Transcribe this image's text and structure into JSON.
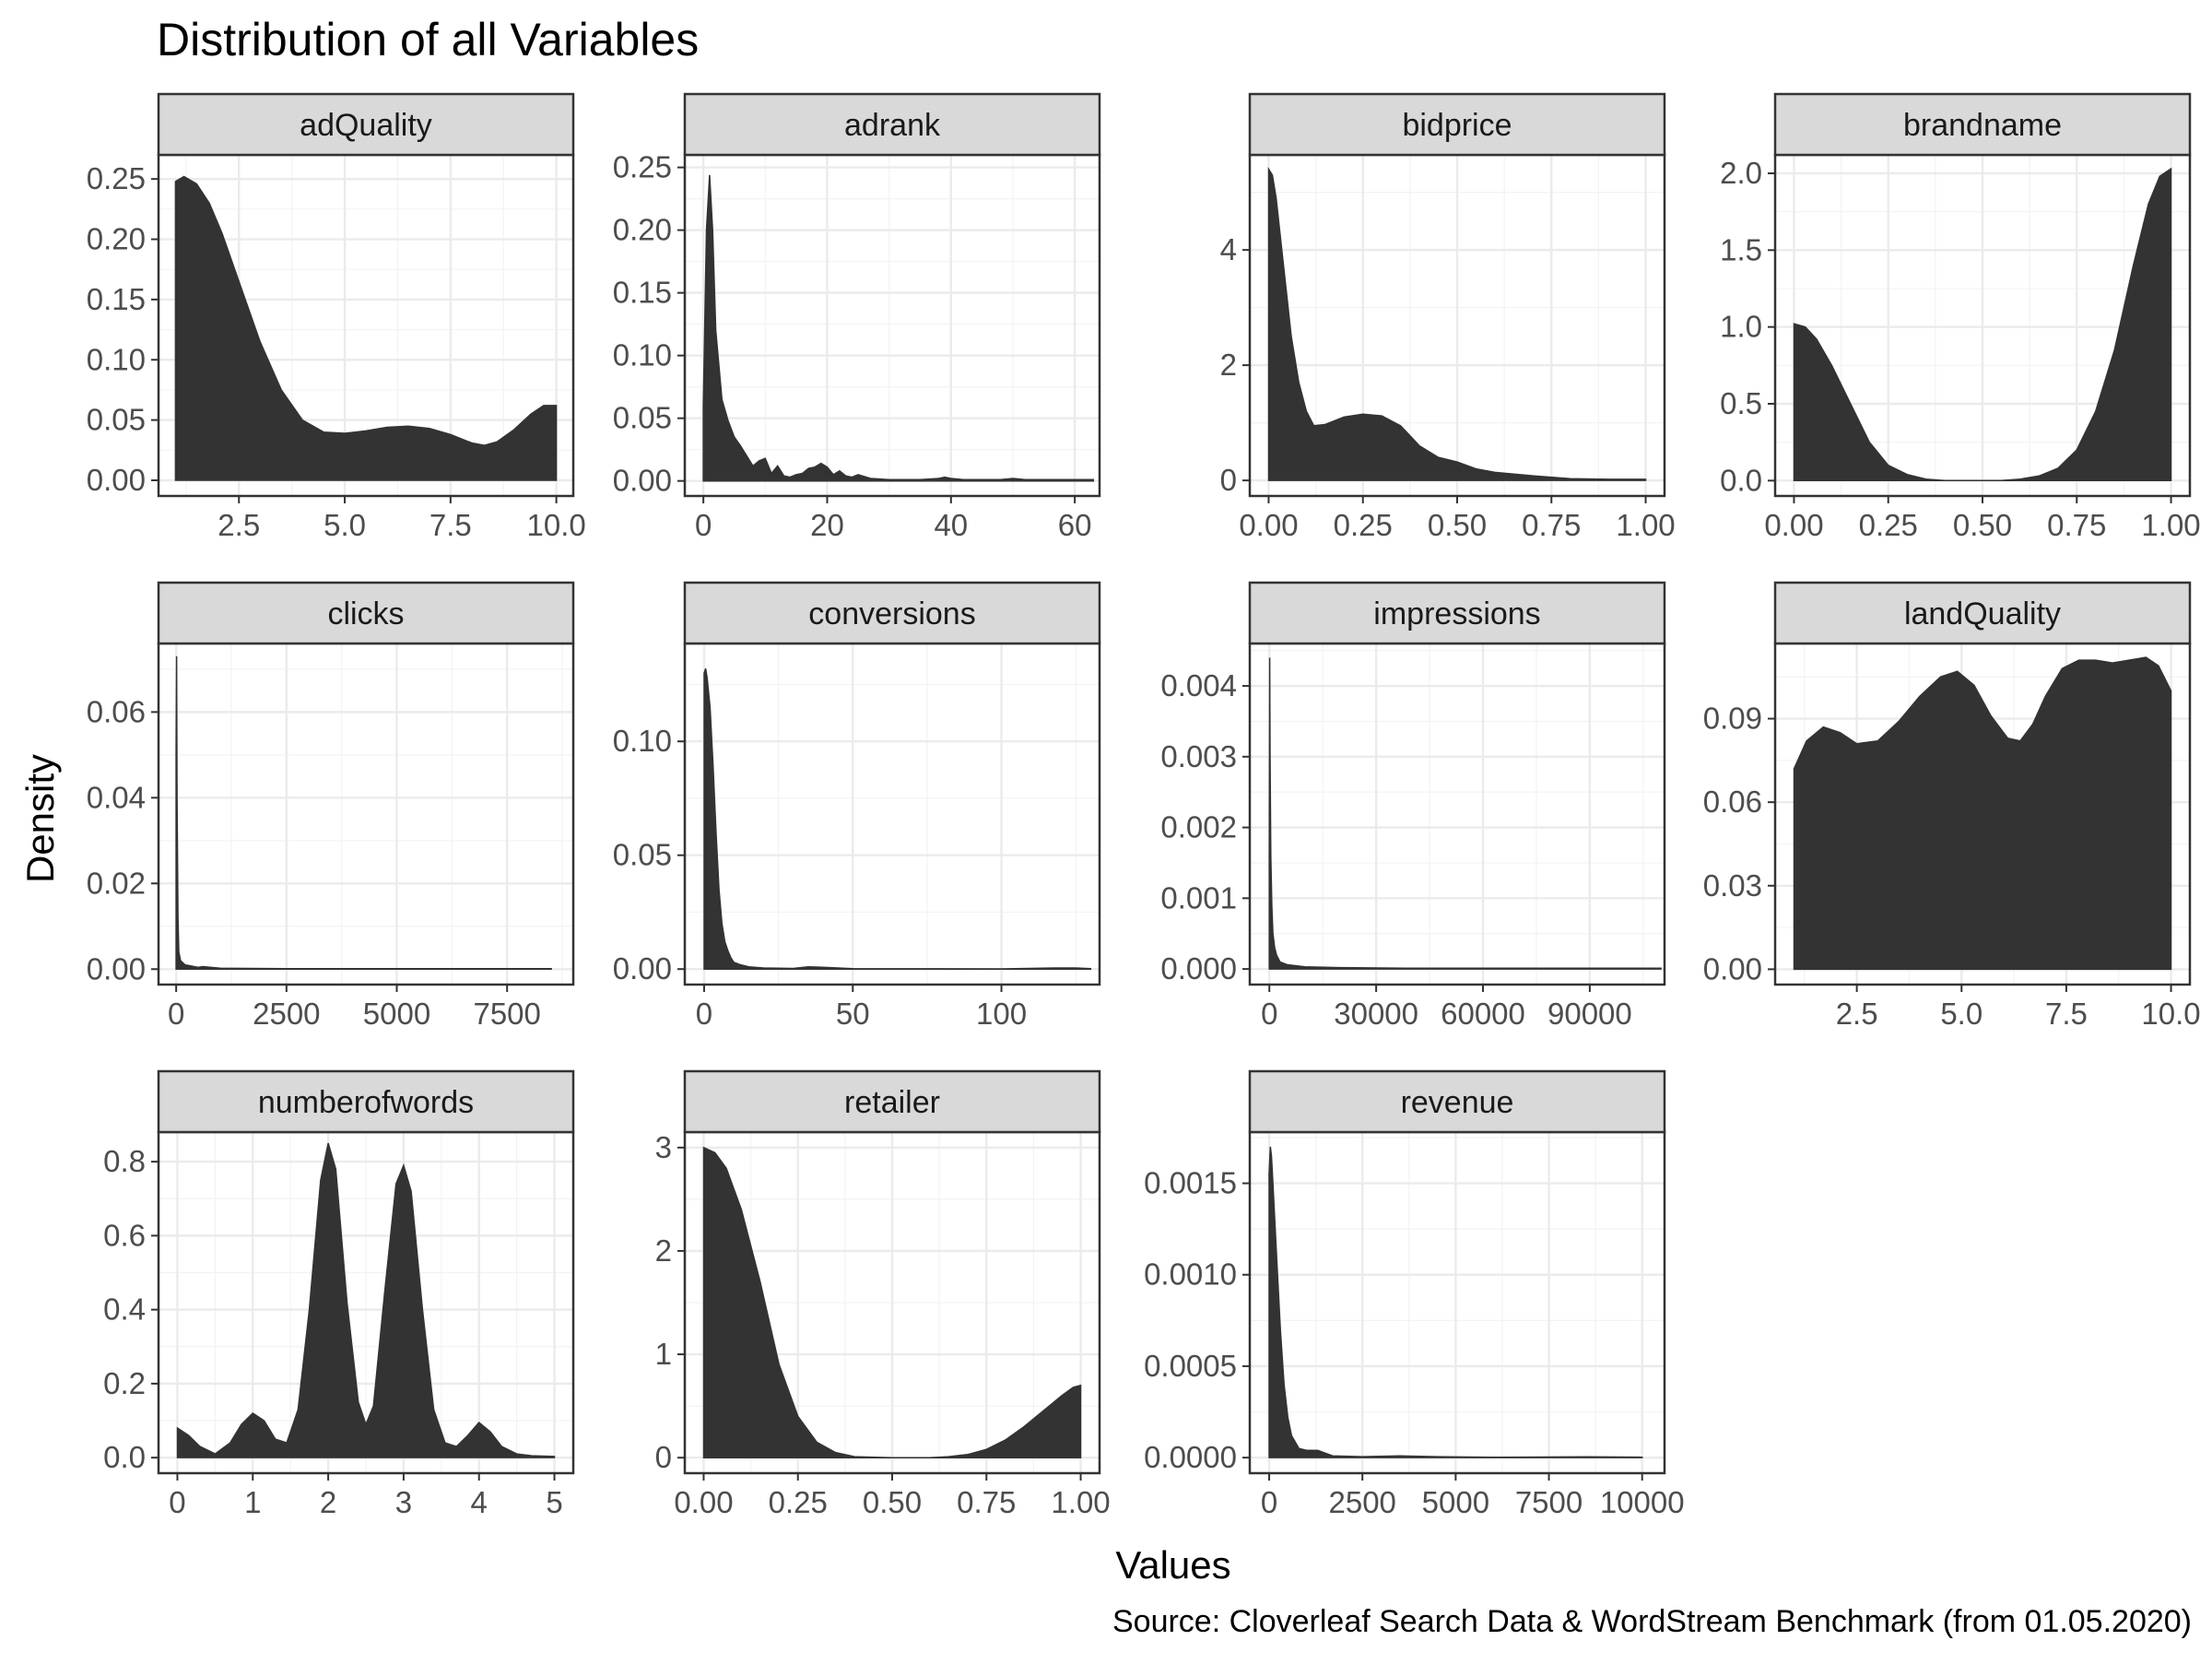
{
  "chart_data": {
    "type": "area",
    "title": "Distribution of all Variables",
    "xlabel": "Values",
    "ylabel": "Density",
    "caption": "Source: Cloverleaf Search Data & WordStream Benchmark (from 01.05.2020)",
    "fill_color": "#333333",
    "strip_fill": "#d9d9d9",
    "panels": [
      {
        "name": "adQuality",
        "xlim": [
          0.6,
          10.4
        ],
        "ylim": [
          -0.013,
          0.27
        ],
        "xticks": [
          2.5,
          5.0,
          7.5,
          10.0
        ],
        "xtick_labels": [
          "2.5",
          "5.0",
          "7.5",
          "10.0"
        ],
        "yticks": [
          0,
          0.05,
          0.1,
          0.15,
          0.2,
          0.25
        ],
        "ytick_labels": [
          "0.00",
          "0.05",
          "0.10",
          "0.15",
          "0.20",
          "0.25"
        ],
        "x": [
          1,
          1.2,
          1.5,
          1.8,
          2.1,
          2.5,
          3,
          3.5,
          4,
          4.5,
          5,
          5.5,
          6,
          6.5,
          7,
          7.5,
          8,
          8.3,
          8.6,
          9,
          9.4,
          9.7,
          10
        ],
        "y": [
          0.248,
          0.252,
          0.246,
          0.23,
          0.205,
          0.165,
          0.115,
          0.075,
          0.05,
          0.04,
          0.039,
          0.041,
          0.044,
          0.045,
          0.043,
          0.038,
          0.031,
          0.029,
          0.032,
          0.042,
          0.055,
          0.062,
          0.062
        ]
      },
      {
        "name": "adrank",
        "xlim": [
          -3,
          64
        ],
        "ylim": [
          -0.012,
          0.26
        ],
        "xticks": [
          0,
          20,
          40,
          60
        ],
        "xtick_labels": [
          "0",
          "20",
          "40",
          "60"
        ],
        "yticks": [
          0,
          0.05,
          0.1,
          0.15,
          0.2,
          0.25
        ],
        "ytick_labels": [
          "0.00",
          "0.05",
          "0.10",
          "0.15",
          "0.20",
          "0.25"
        ],
        "x": [
          0,
          0.5,
          1,
          1.5,
          2,
          3,
          4,
          5,
          6,
          7,
          8,
          9,
          10,
          11,
          12,
          13,
          14,
          15,
          16,
          17,
          18,
          19,
          20,
          21,
          22,
          23,
          24,
          25,
          27,
          30,
          35,
          38,
          39,
          40,
          42,
          45,
          48,
          50,
          52,
          55,
          60,
          62,
          63
        ],
        "y": [
          0.06,
          0.2,
          0.244,
          0.2,
          0.12,
          0.065,
          0.048,
          0.035,
          0.028,
          0.02,
          0.012,
          0.016,
          0.018,
          0.006,
          0.012,
          0.004,
          0.003,
          0.005,
          0.006,
          0.01,
          0.011,
          0.014,
          0.011,
          0.005,
          0.008,
          0.004,
          0.003,
          0.005,
          0.002,
          0.001,
          0.001,
          0.002,
          0.003,
          0.002,
          0.001,
          0.001,
          0.001,
          0.002,
          0.001,
          0.001,
          0.001,
          0.001,
          0.001
        ]
      },
      {
        "name": "bidprice",
        "xlim": [
          -0.05,
          1.05
        ],
        "ylim": [
          -0.27,
          5.65
        ],
        "xticks": [
          0,
          0.25,
          0.5,
          0.75,
          1.0
        ],
        "xtick_labels": [
          "0.00",
          "0.25",
          "0.50",
          "0.75",
          "1.00"
        ],
        "yticks": [
          0,
          2,
          4
        ],
        "ytick_labels": [
          "0",
          "2",
          "4"
        ],
        "x": [
          0,
          0.01,
          0.02,
          0.04,
          0.06,
          0.08,
          0.1,
          0.12,
          0.15,
          0.2,
          0.25,
          0.3,
          0.35,
          0.4,
          0.45,
          0.5,
          0.55,
          0.6,
          0.7,
          0.8,
          0.9,
          1.0
        ],
        "y": [
          5.4,
          5.3,
          4.9,
          3.7,
          2.5,
          1.7,
          1.2,
          0.95,
          0.97,
          1.1,
          1.15,
          1.12,
          0.95,
          0.6,
          0.4,
          0.32,
          0.2,
          0.14,
          0.08,
          0.03,
          0.02,
          0.02
        ]
      },
      {
        "name": "brandname",
        "xlim": [
          -0.05,
          1.05
        ],
        "ylim": [
          -0.1,
          2.12
        ],
        "xticks": [
          0,
          0.25,
          0.5,
          0.75,
          1.0
        ],
        "xtick_labels": [
          "0.00",
          "0.25",
          "0.50",
          "0.75",
          "1.00"
        ],
        "yticks": [
          0,
          0.5,
          1.0,
          1.5,
          2.0
        ],
        "ytick_labels": [
          "0.0",
          "0.5",
          "1.0",
          "1.5",
          "2.0"
        ],
        "x": [
          0,
          0.03,
          0.06,
          0.1,
          0.15,
          0.2,
          0.25,
          0.3,
          0.35,
          0.4,
          0.45,
          0.5,
          0.55,
          0.6,
          0.65,
          0.7,
          0.75,
          0.8,
          0.85,
          0.9,
          0.94,
          0.97,
          1.0
        ],
        "y": [
          1.02,
          1.0,
          0.92,
          0.75,
          0.5,
          0.25,
          0.1,
          0.04,
          0.01,
          0.0,
          0.0,
          0.0,
          0.0,
          0.01,
          0.03,
          0.08,
          0.2,
          0.45,
          0.85,
          1.4,
          1.8,
          1.98,
          2.03
        ]
      },
      {
        "name": "clicks",
        "xlim": [
          -400,
          9000
        ],
        "ylim": [
          -0.0036,
          0.076
        ],
        "xticks": [
          0,
          2500,
          5000,
          7500
        ],
        "xtick_labels": [
          "0",
          "2500",
          "5000",
          "7500"
        ],
        "yticks": [
          0,
          0.02,
          0.04,
          0.06
        ],
        "ytick_labels": [
          "0.00",
          "0.02",
          "0.04",
          "0.06"
        ],
        "x": [
          0,
          10,
          20,
          40,
          60,
          100,
          200,
          300,
          500,
          600,
          1000,
          2500,
          5000,
          8500
        ],
        "y": [
          0.05,
          0.073,
          0.04,
          0.012,
          0.004,
          0.002,
          0.001,
          0.0008,
          0.0004,
          0.0006,
          0.0002,
          0.0001,
          0.0001,
          0.0001
        ]
      },
      {
        "name": "conversions",
        "xlim": [
          -6.5,
          133
        ],
        "ylim": [
          -0.0068,
          0.143
        ],
        "xticks": [
          0,
          50,
          100
        ],
        "xtick_labels": [
          "0",
          "50",
          "100"
        ],
        "yticks": [
          0,
          0.05,
          0.1
        ],
        "ytick_labels": [
          "0.00",
          "0.05",
          "0.10"
        ],
        "x": [
          0,
          0.5,
          1,
          2,
          3,
          4,
          5,
          6,
          7,
          8,
          9,
          10,
          12,
          15,
          20,
          30,
          35,
          40,
          50,
          100,
          118,
          125,
          130
        ],
        "y": [
          0.13,
          0.132,
          0.128,
          0.115,
          0.09,
          0.06,
          0.035,
          0.02,
          0.012,
          0.008,
          0.005,
          0.003,
          0.002,
          0.001,
          0.0005,
          0.0003,
          0.001,
          0.0008,
          0.0002,
          0.0001,
          0.0005,
          0.0005,
          0.0002
        ]
      },
      {
        "name": "impressions",
        "xlim": [
          -5500,
          111000
        ],
        "ylim": [
          -0.00022,
          0.0046
        ],
        "xticks": [
          0,
          30000,
          60000,
          90000
        ],
        "xtick_labels": [
          "0",
          "30000",
          "60000",
          "90000"
        ],
        "yticks": [
          0,
          0.001,
          0.002,
          0.003,
          0.004
        ],
        "ytick_labels": [
          "0.000",
          "0.001",
          "0.002",
          "0.003",
          "0.004"
        ],
        "x": [
          0,
          100,
          200,
          400,
          700,
          1000,
          1500,
          2000,
          3000,
          5000,
          10000,
          20000,
          40000,
          60000,
          90000,
          110000
        ],
        "y": [
          0.0016,
          0.0044,
          0.003,
          0.0016,
          0.0009,
          0.0005,
          0.0003,
          0.0002,
          0.0001,
          6e-05,
          3e-05,
          2e-05,
          1e-05,
          1e-05,
          1e-05,
          1e-05
        ]
      },
      {
        "name": "landQuality",
        "xlim": [
          0.55,
          10.45
        ],
        "ylim": [
          -0.0055,
          0.117
        ],
        "xticks": [
          2.5,
          5.0,
          7.5,
          10.0
        ],
        "xtick_labels": [
          "2.5",
          "5.0",
          "7.5",
          "10.0"
        ],
        "yticks": [
          0,
          0.03,
          0.06,
          0.09
        ],
        "ytick_labels": [
          "0.00",
          "0.03",
          "0.06",
          "0.09"
        ],
        "x": [
          1,
          1.3,
          1.7,
          2.1,
          2.5,
          3,
          3.5,
          4,
          4.5,
          4.9,
          5.3,
          5.7,
          6.1,
          6.4,
          6.7,
          7,
          7.4,
          7.8,
          8.2,
          8.6,
          9,
          9.4,
          9.7,
          10
        ],
        "y": [
          0.072,
          0.082,
          0.087,
          0.085,
          0.081,
          0.082,
          0.089,
          0.098,
          0.105,
          0.107,
          0.102,
          0.091,
          0.083,
          0.082,
          0.088,
          0.098,
          0.108,
          0.111,
          0.111,
          0.11,
          0.111,
          0.112,
          0.109,
          0.1
        ]
      },
      {
        "name": "numberofwords",
        "xlim": [
          -0.25,
          5.25
        ],
        "ylim": [
          -0.042,
          0.88
        ],
        "xticks": [
          0,
          1,
          2,
          3,
          4,
          5
        ],
        "xtick_labels": [
          "0",
          "1",
          "2",
          "3",
          "4",
          "5"
        ],
        "yticks": [
          0,
          0.2,
          0.4,
          0.6,
          0.8
        ],
        "ytick_labels": [
          "0.0",
          "0.2",
          "0.4",
          "0.6",
          "0.8"
        ],
        "x": [
          0,
          0.15,
          0.3,
          0.5,
          0.7,
          0.85,
          1.0,
          1.15,
          1.3,
          1.45,
          1.6,
          1.75,
          1.9,
          2.0,
          2.1,
          2.25,
          2.4,
          2.5,
          2.6,
          2.75,
          2.9,
          3.0,
          3.1,
          3.25,
          3.4,
          3.55,
          3.7,
          3.85,
          4.0,
          4.15,
          4.3,
          4.5,
          4.7,
          5.0
        ],
        "y": [
          0.08,
          0.06,
          0.03,
          0.01,
          0.04,
          0.09,
          0.12,
          0.1,
          0.05,
          0.04,
          0.13,
          0.4,
          0.75,
          0.85,
          0.78,
          0.42,
          0.15,
          0.09,
          0.14,
          0.45,
          0.74,
          0.79,
          0.72,
          0.4,
          0.13,
          0.04,
          0.03,
          0.06,
          0.095,
          0.07,
          0.03,
          0.01,
          0.005,
          0.003
        ]
      },
      {
        "name": "retailer",
        "xlim": [
          -0.05,
          1.05
        ],
        "ylim": [
          -0.15,
          3.15
        ],
        "xticks": [
          0,
          0.25,
          0.5,
          0.75,
          1.0
        ],
        "xtick_labels": [
          "0.00",
          "0.25",
          "0.50",
          "0.75",
          "1.00"
        ],
        "yticks": [
          0,
          1,
          2,
          3
        ],
        "ytick_labels": [
          "0",
          "1",
          "2",
          "3"
        ],
        "x": [
          0,
          0.03,
          0.06,
          0.1,
          0.15,
          0.2,
          0.25,
          0.3,
          0.35,
          0.4,
          0.5,
          0.6,
          0.65,
          0.7,
          0.75,
          0.8,
          0.85,
          0.9,
          0.95,
          0.98,
          1.0
        ],
        "y": [
          3.0,
          2.95,
          2.8,
          2.4,
          1.7,
          0.9,
          0.4,
          0.15,
          0.05,
          0.01,
          0.0,
          0.0,
          0.01,
          0.03,
          0.08,
          0.17,
          0.3,
          0.45,
          0.6,
          0.68,
          0.7
        ]
      },
      {
        "name": "revenue",
        "xlim": [
          -520,
          10600
        ],
        "ylim": [
          -8.5e-05,
          0.00178
        ],
        "xticks": [
          0,
          2500,
          5000,
          7500,
          10000
        ],
        "xtick_labels": [
          "0",
          "2500",
          "5000",
          "7500",
          "10000"
        ],
        "yticks": [
          0,
          0.0005,
          0.001,
          0.0015
        ],
        "ytick_labels": [
          "0.0000",
          "0.0005",
          "0.0010",
          "0.0015"
        ],
        "x": [
          0,
          30,
          60,
          100,
          200,
          300,
          400,
          500,
          600,
          800,
          1000,
          1300,
          1700,
          2500,
          3500,
          4500,
          6000,
          8500,
          10000
        ],
        "y": [
          0.00155,
          0.0017,
          0.00165,
          0.0015,
          0.0011,
          0.0007,
          0.0004,
          0.00022,
          0.00012,
          5e-05,
          4e-05,
          4e-05,
          1e-05,
          5e-06,
          1e-05,
          5e-06,
          2e-06,
          4e-06,
          2e-06
        ]
      }
    ]
  }
}
